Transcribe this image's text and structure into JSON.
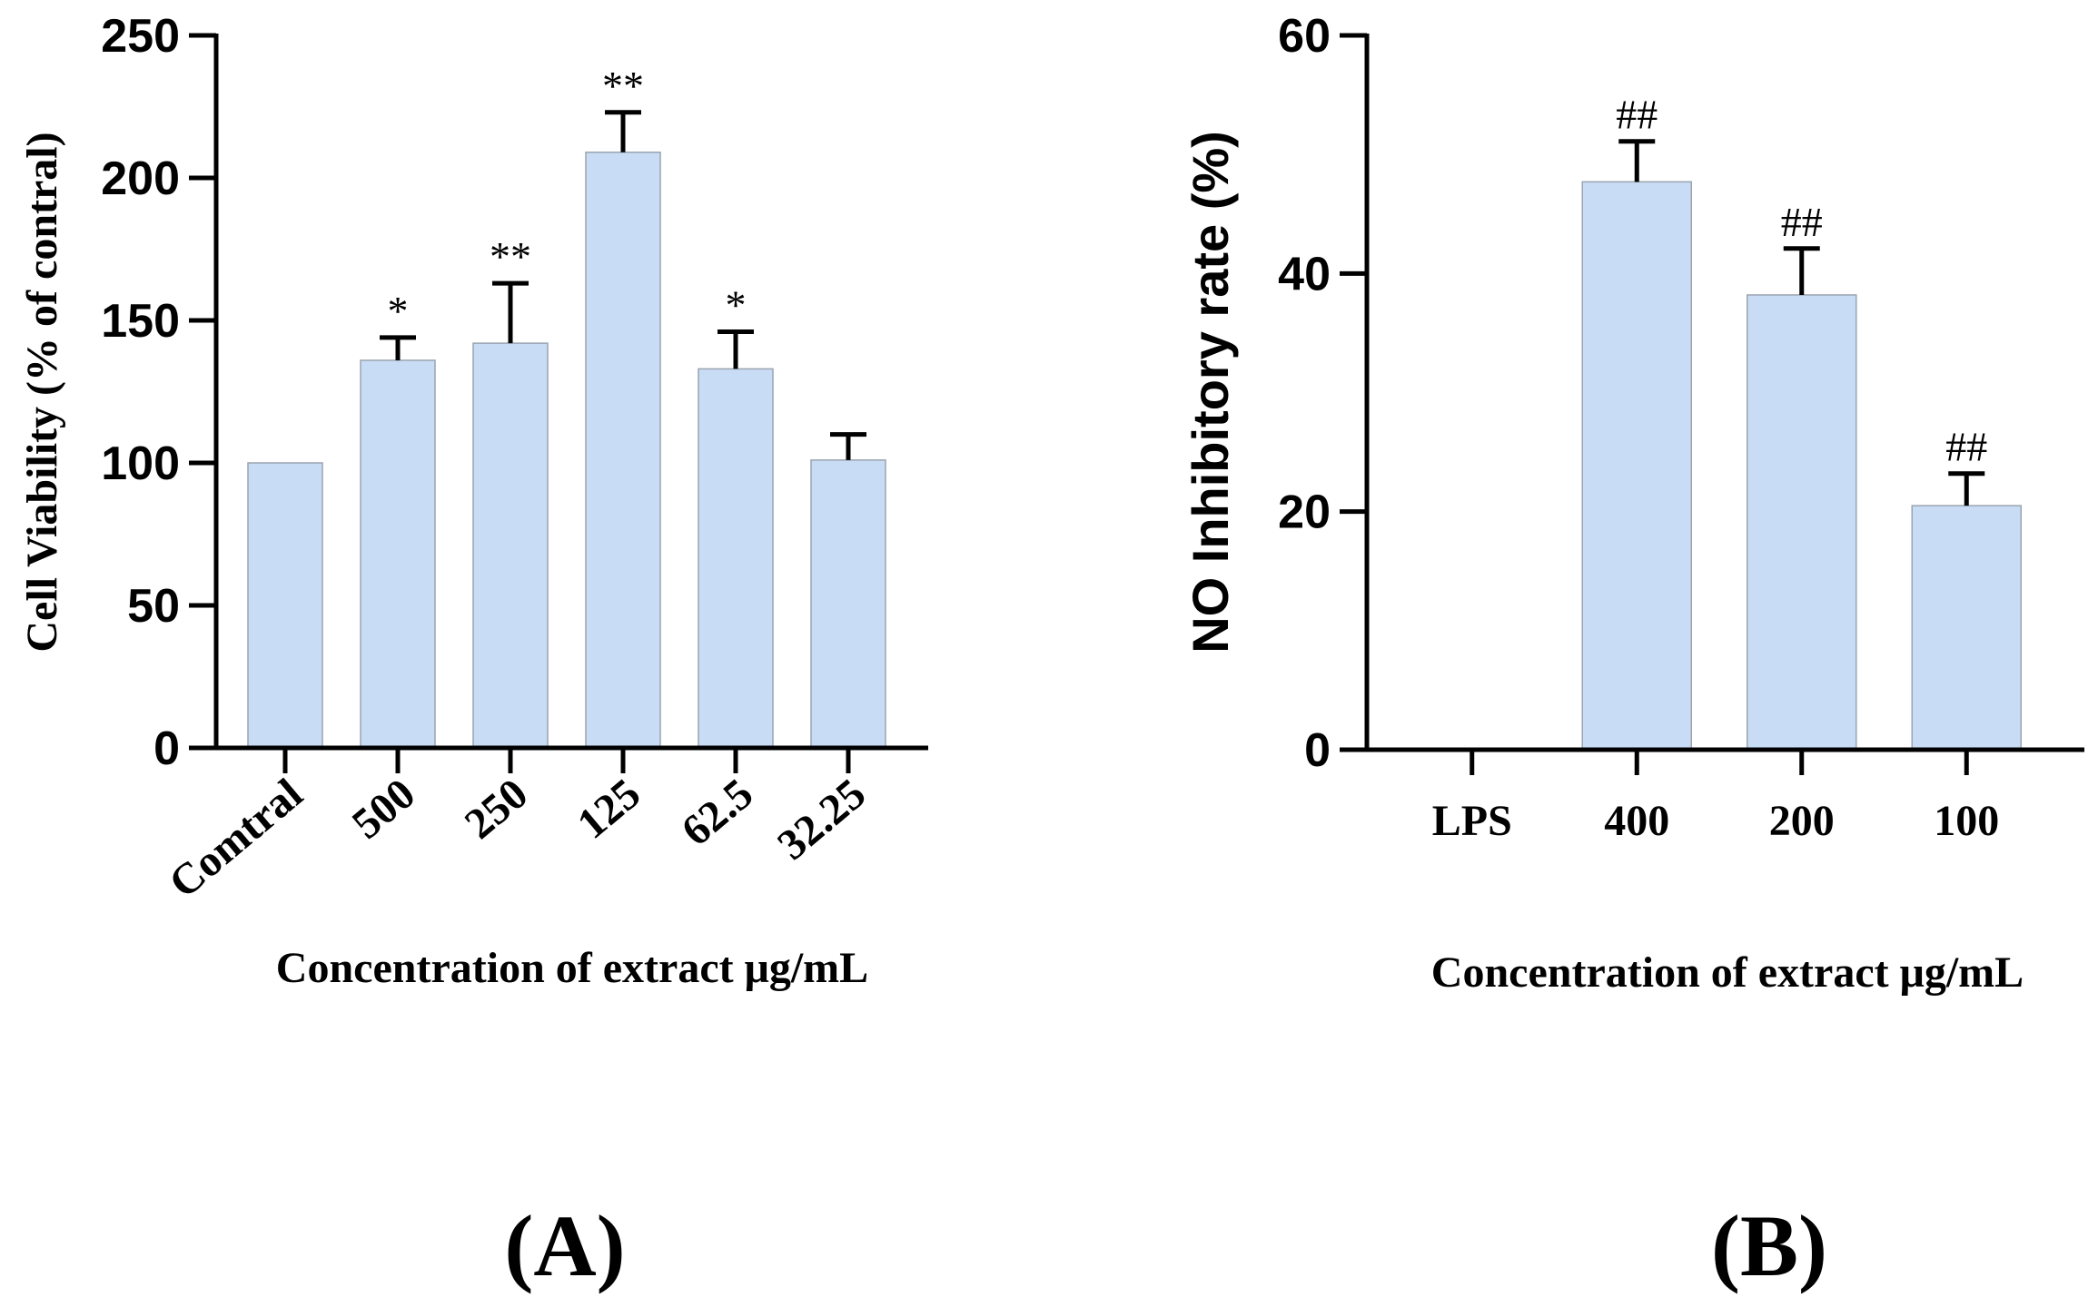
{
  "chart_data": [
    {
      "type": "bar",
      "panel_label": "(A)",
      "categories": [
        "Comtral",
        "500",
        "250",
        "125",
        "62.5",
        "32.25"
      ],
      "values": [
        100,
        136,
        142,
        209,
        133,
        101
      ],
      "errors": [
        0,
        8,
        21,
        14,
        13,
        9
      ],
      "significance": [
        "",
        "*",
        "**",
        "**",
        "*",
        ""
      ],
      "xlabel": "Concentration of extract  μg/mL",
      "ylabel": "Cell Viability (%  of contral)",
      "ylim": [
        0,
        250
      ],
      "yticks": [
        0,
        50,
        100,
        150,
        200,
        250
      ],
      "bar_color": "#c9dcf5"
    },
    {
      "type": "bar",
      "panel_label": "(B)",
      "categories": [
        "LPS",
        "400",
        "200",
        "100"
      ],
      "values": [
        0,
        47.7,
        38.2,
        20.5
      ],
      "errors": [
        0,
        3.4,
        3.9,
        2.7
      ],
      "significance": [
        "",
        "##",
        "##",
        "##"
      ],
      "xlabel": "Concentration of extract  μg/mL",
      "ylabel": "NO Inhibitory rate (%)",
      "ylim": [
        0,
        60
      ],
      "yticks": [
        0,
        20,
        40,
        60
      ],
      "bar_color": "#c9dcf5"
    }
  ]
}
